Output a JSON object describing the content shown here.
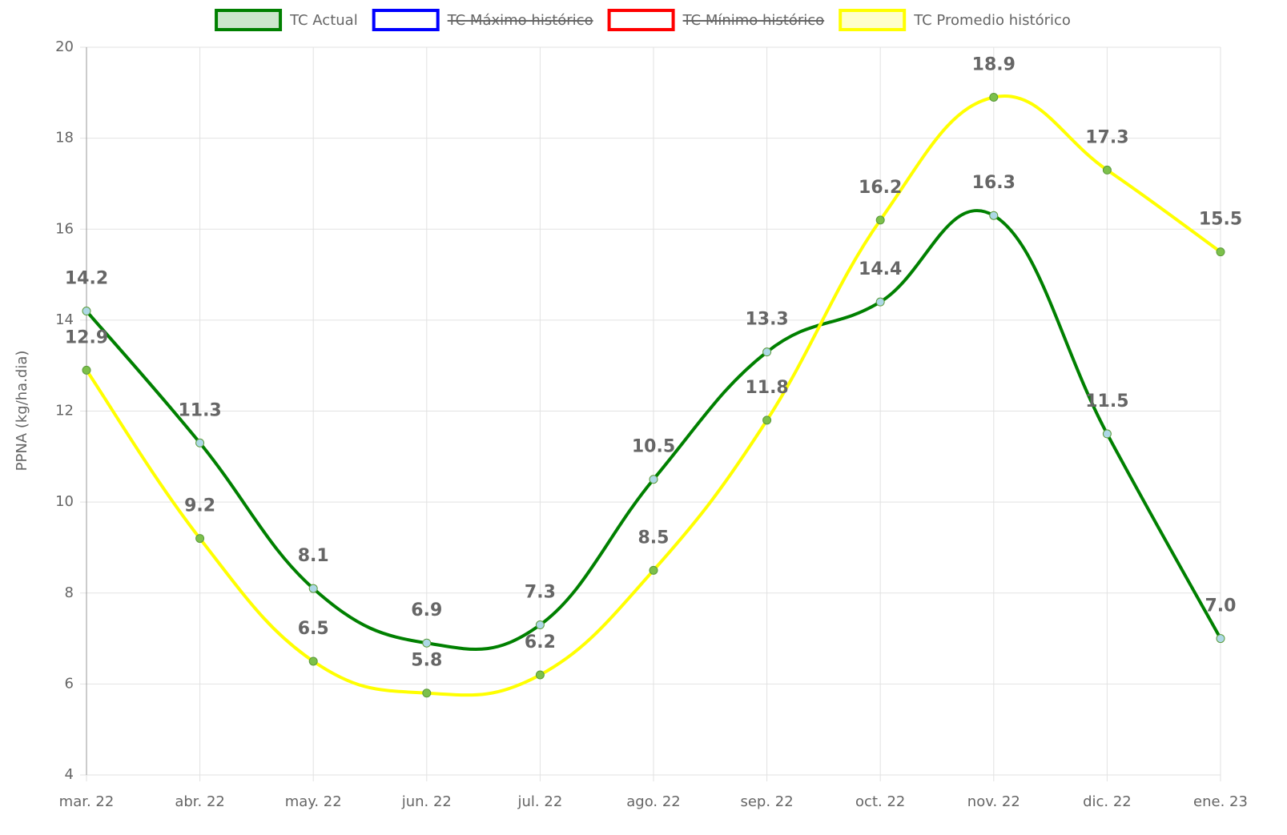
{
  "chart_data": {
    "type": "line",
    "y_label": "PPNA (kg/ha.dia)",
    "categories": [
      "mar. 22",
      "abr. 22",
      "may. 22",
      "jun. 22",
      "jul. 22",
      "ago. 22",
      "sep. 22",
      "oct. 22",
      "nov. 22",
      "dic. 22",
      "ene. 23"
    ],
    "series": [
      {
        "name": "TC Actual",
        "color": "#008000",
        "point_color": "#add8e6",
        "hidden": false,
        "values": [
          14.2,
          11.3,
          8.1,
          6.9,
          7.3,
          10.5,
          13.3,
          14.4,
          16.3,
          11.5,
          7.0
        ],
        "value_labels": [
          "14.2",
          "11.3",
          "8.1",
          "6.9",
          "7.3",
          "10.5",
          "13.3",
          "14.4",
          "16.3",
          "11.5",
          "7.0"
        ]
      },
      {
        "name": "TC Máximo histórico",
        "color": "#0000ff",
        "hidden": true,
        "values": [
          null,
          null,
          null,
          null,
          null,
          null,
          null,
          null,
          null,
          null,
          null
        ]
      },
      {
        "name": "TC Mínimo histórico",
        "color": "#ff0000",
        "hidden": true,
        "values": [
          null,
          null,
          null,
          null,
          null,
          null,
          null,
          null,
          null,
          null,
          null
        ]
      },
      {
        "name": "TC Promedio histórico",
        "color": "#ffff00",
        "point_color": "#7cc04a",
        "hidden": false,
        "values": [
          12.9,
          9.2,
          6.5,
          5.8,
          6.2,
          8.5,
          11.8,
          16.2,
          18.9,
          17.3,
          15.5
        ]
      }
    ],
    "ylim": [
      4,
      20
    ],
    "yticks": [
      4,
      6,
      8,
      10,
      12,
      14,
      16,
      18,
      20
    ],
    "grid": true,
    "legend": "top"
  }
}
